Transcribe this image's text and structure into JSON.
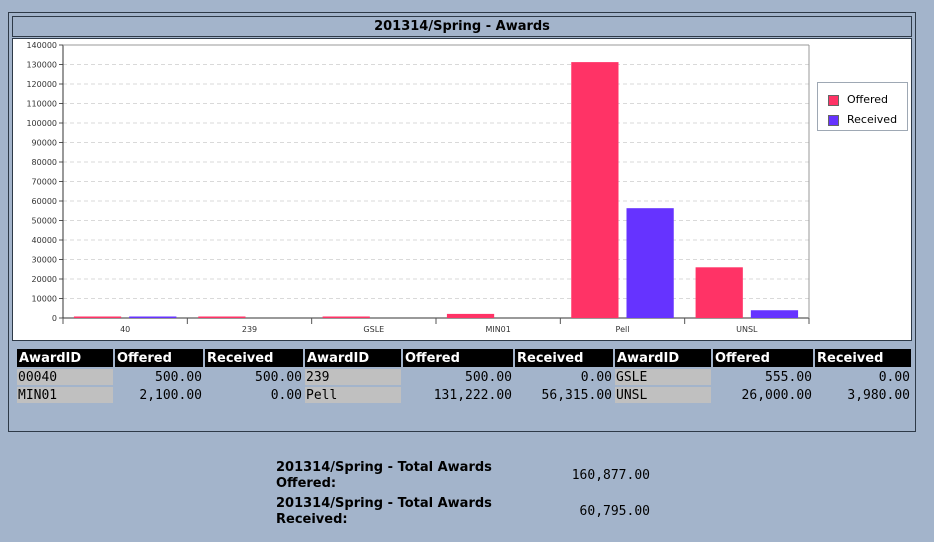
{
  "page": {
    "title": "201314/Spring - Awards",
    "background": "#a3b4cb"
  },
  "chart_data": {
    "type": "bar",
    "categories": [
      "40",
      "239",
      "GSLE",
      "MIN01",
      "Pell",
      "UNSL"
    ],
    "series": [
      {
        "name": "Offered",
        "color": "#ff3366",
        "values": [
          500,
          500,
          555,
          2100,
          131222,
          26000
        ]
      },
      {
        "name": "Received",
        "color": "#6633ff",
        "values": [
          500,
          0,
          0,
          0,
          56315,
          3980
        ]
      }
    ],
    "ylim": [
      0,
      140000
    ],
    "yticks": [
      0,
      10000,
      20000,
      30000,
      40000,
      50000,
      60000,
      70000,
      80000,
      90000,
      100000,
      110000,
      120000,
      130000,
      140000
    ],
    "grid": true,
    "legend_position": "right"
  },
  "table": {
    "headers": [
      "AwardID",
      "Offered",
      "Received",
      "AwardID",
      "Offered",
      "Received",
      "AwardID",
      "Offered",
      "Received"
    ],
    "rows": [
      [
        "00040",
        "500.00",
        "500.00",
        "239",
        "500.00",
        "0.00",
        "GSLE",
        "555.00",
        "0.00"
      ],
      [
        "MIN01",
        "2,100.00",
        "0.00",
        "Pell",
        "131,222.00",
        "56,315.00",
        "UNSL",
        "26,000.00",
        "3,980.00"
      ]
    ]
  },
  "totals": {
    "offered_label": "201314/Spring - Total Awards Offered:",
    "offered_value": "160,877.00",
    "received_label": "201314/Spring - Total Awards Received:",
    "received_value": "60,795.00"
  }
}
